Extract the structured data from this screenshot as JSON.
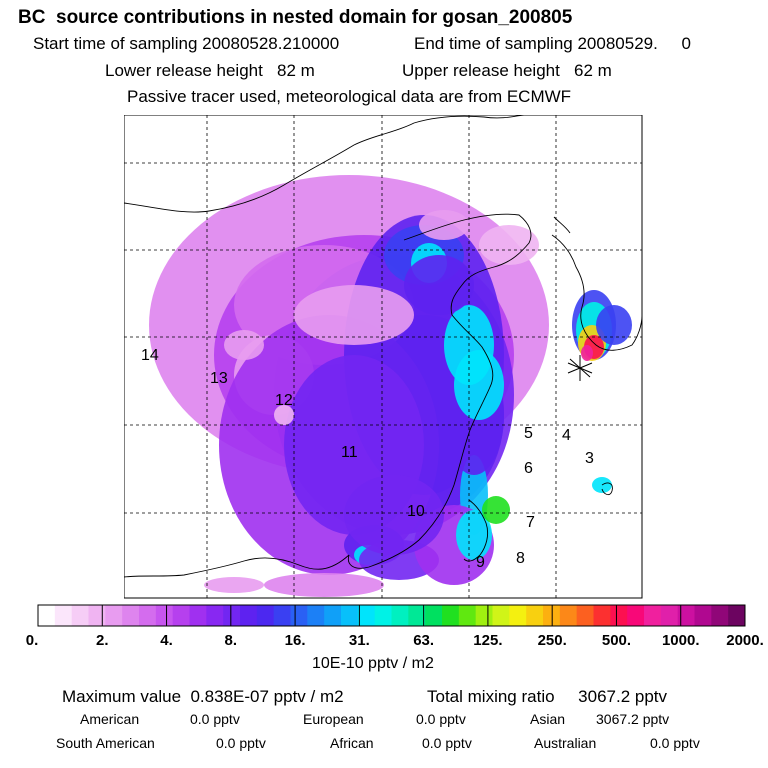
{
  "header": {
    "title": "BC  source contributions in nested domain for gosan_200805",
    "start": "Start time of sampling 20080528.210000",
    "end": "End time of sampling 20080529.     0",
    "lower": "Lower release height   82 m",
    "upper": "Upper release height   62 m",
    "tracer": "Passive tracer used, meteorological data are from ECMWF"
  },
  "chart_data": {
    "type": "heatmap",
    "title": "BC  source contributions in nested domain for gosan_200805",
    "receptor_marker": "gosan",
    "region_labels": [
      "14",
      "13",
      "12",
      "11",
      "10",
      "9",
      "8",
      "7",
      "6",
      "5",
      "4",
      "3"
    ],
    "colorbar": {
      "ticks": [
        "0.",
        "2.",
        "4.",
        "8.",
        "16.",
        "31.",
        "63.",
        "125.",
        "250.",
        "500.",
        "1000.",
        "2000."
      ],
      "unit": "10E-10 pptv / m2",
      "colors": [
        "#ffffff",
        "#fbe6fb",
        "#f6cdf6",
        "#f0b4f2",
        "#e89cf0",
        "#de84ee",
        "#d46cee",
        "#c755ef",
        "#b640ee",
        "#a030f0",
        "#8828f2",
        "#7226f2",
        "#5e22f0",
        "#4c28f0",
        "#3a40f2",
        "#2a60f4",
        "#1c80f6",
        "#10a0f8",
        "#08c0fa",
        "#00e4fc",
        "#00f2e6",
        "#00f0c0",
        "#00e896",
        "#00e060",
        "#20e020",
        "#60e810",
        "#a0f010",
        "#d0f418",
        "#f4f010",
        "#f8d010",
        "#fcb010",
        "#fc8818",
        "#fc6020",
        "#fc3030",
        "#fc1050",
        "#f80878",
        "#f0209e",
        "#e020aa",
        "#cc10a0",
        "#b00890",
        "#900678",
        "#6c0460"
      ]
    },
    "stats": {
      "maximum_value": "Maximum value  0.838E-07 pptv / m2",
      "total_mixing_ratio": "Total mixing ratio     3067.2 pptv"
    },
    "contributions": [
      {
        "region": "American",
        "value": "0.0 pptv"
      },
      {
        "region": "European",
        "value": "0.0 pptv"
      },
      {
        "region": "Asian",
        "value": "3067.2 pptv"
      },
      {
        "region": "South American",
        "value": "0.0 pptv"
      },
      {
        "region": "African",
        "value": "0.0 pptv"
      },
      {
        "region": "Australian",
        "value": "0.0 pptv"
      }
    ]
  }
}
